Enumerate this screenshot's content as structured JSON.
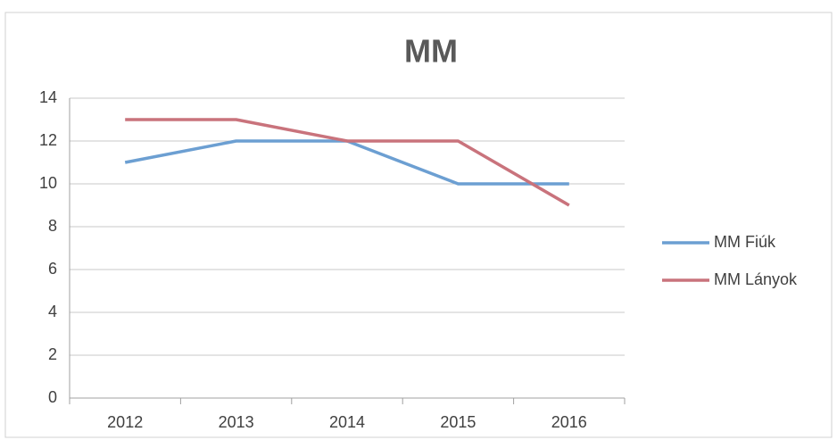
{
  "chart_data": {
    "type": "line",
    "title": "MM",
    "categories": [
      "2012",
      "2013",
      "2014",
      "2015",
      "2016"
    ],
    "series": [
      {
        "name": "MM Fiúk",
        "color": "#6c9fd2",
        "values": [
          11,
          12,
          12,
          10,
          10
        ]
      },
      {
        "name": "MM Lányok",
        "color": "#c9737c",
        "values": [
          13,
          13,
          12,
          12,
          9
        ]
      }
    ],
    "ylim": [
      0,
      14
    ],
    "yticks": [
      0,
      2,
      4,
      6,
      8,
      10,
      12,
      14
    ],
    "grid": true,
    "legend": "right"
  }
}
